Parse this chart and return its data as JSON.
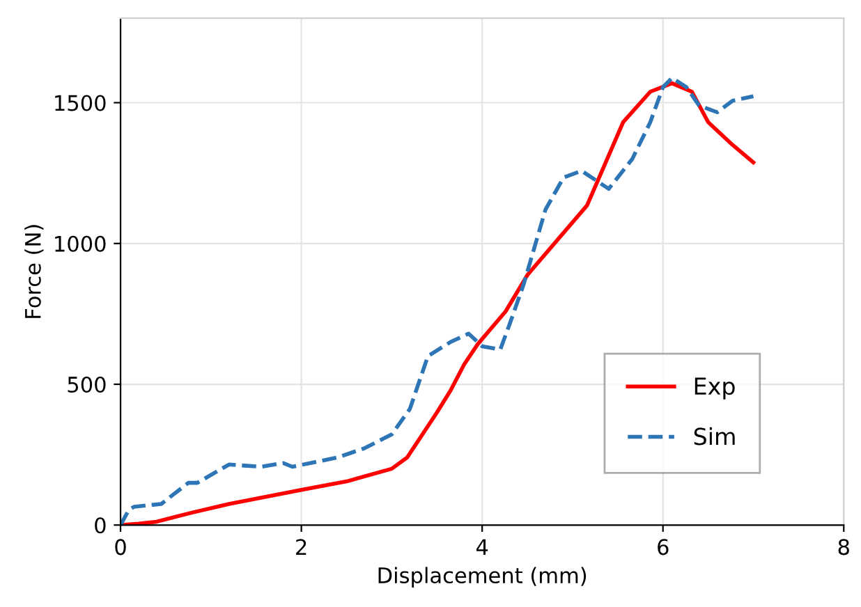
{
  "chart_data": {
    "type": "line",
    "xlabel": "Displacement (mm)",
    "ylabel": "Force (N)",
    "xlim": [
      0,
      8
    ],
    "ylim": [
      0,
      1800
    ],
    "xticks": [
      0,
      2,
      4,
      6,
      8
    ],
    "yticks": [
      0,
      500,
      1000,
      1500
    ],
    "grid": true,
    "legend": "bottom right",
    "series": [
      {
        "name": "Exp",
        "color": "#ff0000",
        "line_style": "solid",
        "x": [
          0,
          0.2,
          0.4,
          0.8,
          1.2,
          2,
          2.5,
          3.0,
          3.17,
          3.5,
          3.65,
          3.8,
          3.95,
          4.26,
          4.5,
          5.16,
          5.56,
          5.86,
          6.1,
          6.32,
          6.5,
          6.77,
          7.0
        ],
        "values": [
          0,
          5,
          12,
          45,
          75,
          125,
          155,
          200,
          240,
          400,
          478,
          570,
          642,
          759,
          888,
          1135,
          1431,
          1539,
          1569,
          1539,
          1431,
          1350,
          1288
        ]
      },
      {
        "name": "Sim",
        "color": "#2e75b6",
        "line_style": "dashed",
        "x": [
          0,
          0.09,
          0.15,
          0.3,
          0.45,
          0.75,
          0.85,
          1.2,
          1.55,
          1.8,
          1.9,
          2.4,
          2.7,
          3.0,
          3.2,
          3.4,
          3.65,
          3.85,
          4.0,
          4.2,
          4.3,
          4.46,
          4.7,
          4.9,
          5.1,
          5.4,
          5.66,
          5.86,
          6.0,
          6.1,
          6.26,
          6.4,
          6.6,
          6.77,
          7.0
        ],
        "values": [
          0,
          53,
          65,
          70,
          75,
          150,
          150,
          215,
          207,
          220,
          207,
          240,
          273,
          322,
          412,
          600,
          650,
          680,
          635,
          623,
          710,
          856,
          1120,
          1234,
          1258,
          1194,
          1300,
          1431,
          1555,
          1588,
          1555,
          1490,
          1466,
          1507,
          1523
        ]
      }
    ]
  }
}
